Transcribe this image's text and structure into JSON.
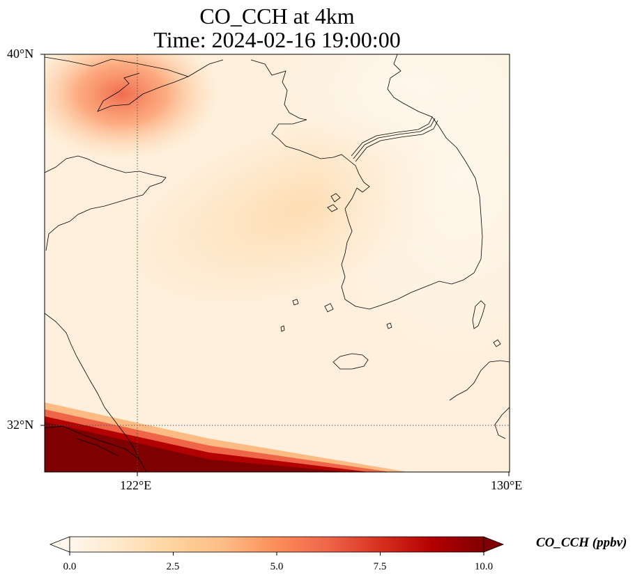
{
  "title": {
    "line1": "CO_CCH at 4km",
    "line2": "Time: 2024-02-16 19:00:00"
  },
  "axes": {
    "lat_ticks": [
      "40°N",
      "32°N"
    ],
    "lon_ticks": [
      "122°E",
      "130°E"
    ],
    "lat_range": [
      31,
      40
    ],
    "lon_range": [
      120,
      130
    ],
    "gridlines": "dotted"
  },
  "colorbar": {
    "label": "CO_CCH (ppbv)",
    "ticks": [
      "0.0",
      "2.5",
      "5.0",
      "7.5",
      "10.0"
    ],
    "range": [
      0,
      10
    ],
    "colormap": "OrRd",
    "extend": "both",
    "colors": [
      "#fff7ec",
      "#fee8c8",
      "#fdd49e",
      "#fdbb84",
      "#fc8d59",
      "#ef6548",
      "#d7301f",
      "#b30000",
      "#7f0000"
    ]
  }
}
